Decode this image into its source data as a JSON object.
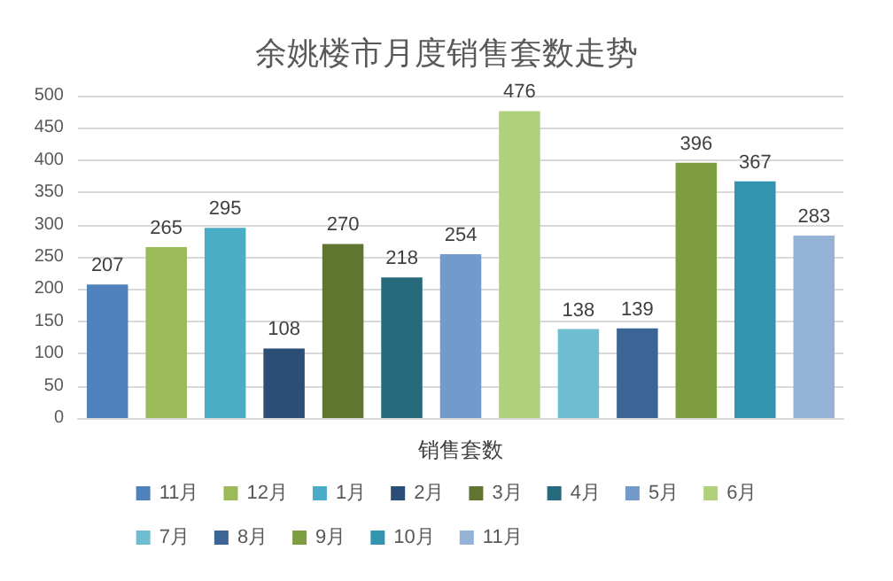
{
  "chart_data": {
    "type": "bar",
    "title": "余姚楼市月度销售套数走势",
    "xlabel": "销售套数",
    "categories": [
      null,
      null,
      null,
      null,
      null,
      null,
      null,
      null,
      null,
      null,
      null,
      null,
      null
    ],
    "series": [
      {
        "name": "11月",
        "color": "#4f81bd",
        "values": [
          207,
          null,
          null,
          null,
          null,
          null,
          null,
          null,
          null,
          null,
          null,
          null,
          null
        ]
      },
      {
        "name": "12月",
        "color": "#9bbb59",
        "values": [
          null,
          265,
          null,
          null,
          null,
          null,
          null,
          null,
          null,
          null,
          null,
          null,
          null
        ]
      },
      {
        "name": "1月",
        "color": "#4bacc6",
        "values": [
          null,
          null,
          295,
          null,
          null,
          null,
          null,
          null,
          null,
          null,
          null,
          null,
          null
        ]
      },
      {
        "name": "2月",
        "color": "#2c4d75",
        "values": [
          null,
          null,
          null,
          108,
          null,
          null,
          null,
          null,
          null,
          null,
          null,
          null,
          null
        ]
      },
      {
        "name": "3月",
        "color": "#5f7530",
        "values": [
          null,
          null,
          null,
          null,
          270,
          null,
          null,
          null,
          null,
          null,
          null,
          null,
          null
        ]
      },
      {
        "name": "4月",
        "color": "#276a7c",
        "values": [
          null,
          null,
          null,
          null,
          null,
          218,
          null,
          null,
          null,
          null,
          null,
          null,
          null
        ]
      },
      {
        "name": "5月",
        "color": "#729aca",
        "values": [
          null,
          null,
          null,
          null,
          null,
          null,
          254,
          null,
          null,
          null,
          null,
          null,
          null
        ]
      },
      {
        "name": "6月",
        "color": "#afd17c",
        "values": [
          null,
          null,
          null,
          null,
          null,
          null,
          null,
          476,
          null,
          null,
          null,
          null,
          null
        ]
      },
      {
        "name": "7月",
        "color": "#6fbdd1",
        "values": [
          null,
          null,
          null,
          null,
          null,
          null,
          null,
          null,
          138,
          null,
          null,
          null,
          null
        ]
      },
      {
        "name": "8月",
        "color": "#3a6594",
        "values": [
          null,
          null,
          null,
          null,
          null,
          null,
          null,
          null,
          null,
          139,
          null,
          null,
          null
        ]
      },
      {
        "name": "9月",
        "color": "#7e9c40",
        "values": [
          null,
          null,
          null,
          null,
          null,
          null,
          null,
          null,
          null,
          null,
          396,
          null,
          null
        ]
      },
      {
        "name": "10月",
        "color": "#3294ae",
        "values": [
          null,
          null,
          null,
          null,
          null,
          null,
          null,
          null,
          null,
          null,
          null,
          367,
          null
        ]
      },
      {
        "name": "11月",
        "color": "#95b3d7",
        "values": [
          null,
          null,
          null,
          null,
          null,
          null,
          null,
          null,
          null,
          null,
          null,
          null,
          283
        ]
      }
    ],
    "stacked": true,
    "ylim": [
      0,
      500
    ],
    "yticks": [
      0,
      50,
      100,
      150,
      200,
      250,
      300,
      350,
      400,
      450,
      500
    ],
    "grid": "y",
    "legend": "bottom",
    "tick_labels": "y",
    "data_labels": true
  }
}
